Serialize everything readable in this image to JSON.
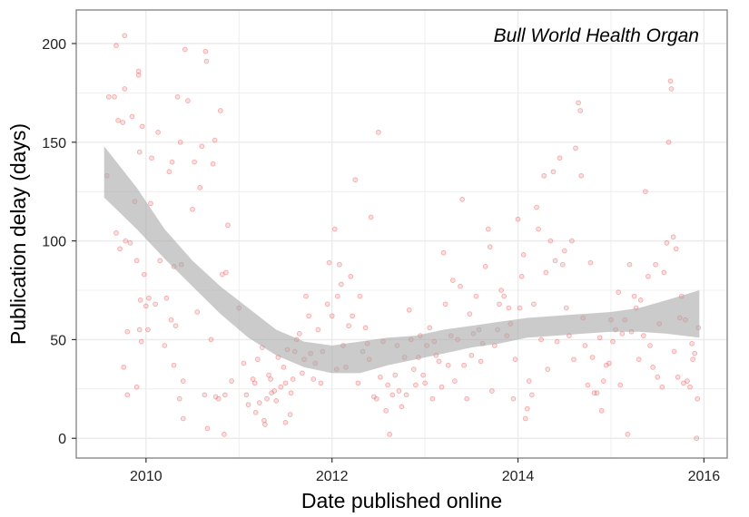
{
  "chart_data": {
    "type": "scatter",
    "annotation": "Bull World Health Organ",
    "xlabel": "Date published online",
    "ylabel": "Publication delay (days)",
    "xlim": [
      2009.25,
      2016.25
    ],
    "ylim": [
      -10,
      217
    ],
    "x_ticks": [
      2010,
      2012,
      2014,
      2016
    ],
    "y_ticks": [
      0,
      50,
      100,
      150,
      200
    ],
    "grid": true,
    "colors": {
      "points": "#f08080",
      "points_stroke": "#e03030",
      "band": "#a9a9a9",
      "grid": "#ebebeb",
      "frame": "#7f7f7f"
    },
    "smooth": {
      "x": [
        2009.55,
        2009.9,
        2010.2,
        2010.5,
        2010.8,
        2011.1,
        2011.4,
        2011.7,
        2012.0,
        2012.3,
        2012.6,
        2012.9,
        2013.2,
        2013.5,
        2013.8,
        2014.1,
        2014.4,
        2014.7,
        2015.0,
        2015.3,
        2015.6,
        2015.95
      ],
      "lower": [
        122,
        106,
        91,
        77,
        63,
        51,
        42,
        36,
        33,
        33,
        37,
        40,
        43,
        46,
        48,
        51,
        52,
        53,
        54,
        54,
        53,
        51
      ],
      "upper": [
        148,
        127,
        106,
        90,
        77,
        66,
        55,
        49,
        47,
        49,
        51,
        52,
        55,
        57,
        59,
        61,
        62,
        63,
        64,
        66,
        70,
        75
      ]
    },
    "points": [
      [
        2009.58,
        133
      ],
      [
        2009.6,
        173
      ],
      [
        2009.66,
        173
      ],
      [
        2009.68,
        104
      ],
      [
        2009.68,
        199
      ],
      [
        2009.7,
        161
      ],
      [
        2009.72,
        96
      ],
      [
        2009.75,
        160
      ],
      [
        2009.76,
        36
      ],
      [
        2009.77,
        177
      ],
      [
        2009.77,
        204
      ],
      [
        2009.78,
        100
      ],
      [
        2009.8,
        22
      ],
      [
        2009.8,
        54
      ],
      [
        2009.83,
        99
      ],
      [
        2009.85,
        163
      ],
      [
        2009.88,
        120
      ],
      [
        2009.9,
        26
      ],
      [
        2009.9,
        90
      ],
      [
        2009.92,
        184
      ],
      [
        2009.92,
        186
      ],
      [
        2009.93,
        55
      ],
      [
        2009.93,
        145
      ],
      [
        2009.94,
        70
      ],
      [
        2009.95,
        49
      ],
      [
        2009.96,
        158
      ],
      [
        2009.98,
        83
      ],
      [
        2010.0,
        67
      ],
      [
        2010.02,
        55
      ],
      [
        2010.03,
        71
      ],
      [
        2010.05,
        119
      ],
      [
        2010.06,
        142
      ],
      [
        2010.1,
        68
      ],
      [
        2010.13,
        155
      ],
      [
        2010.15,
        90
      ],
      [
        2010.2,
        47
      ],
      [
        2010.22,
        71
      ],
      [
        2010.25,
        135
      ],
      [
        2010.27,
        60
      ],
      [
        2010.28,
        140
      ],
      [
        2010.3,
        87
      ],
      [
        2010.3,
        37
      ],
      [
        2010.32,
        57
      ],
      [
        2010.34,
        173
      ],
      [
        2010.36,
        20
      ],
      [
        2010.37,
        150
      ],
      [
        2010.38,
        88
      ],
      [
        2010.4,
        10
      ],
      [
        2010.4,
        29
      ],
      [
        2010.42,
        197
      ],
      [
        2010.45,
        171
      ],
      [
        2010.5,
        116
      ],
      [
        2010.52,
        140
      ],
      [
        2010.55,
        64
      ],
      [
        2010.58,
        127
      ],
      [
        2010.6,
        148
      ],
      [
        2010.63,
        22
      ],
      [
        2010.64,
        196
      ],
      [
        2010.65,
        191
      ],
      [
        2010.66,
        5
      ],
      [
        2010.7,
        50
      ],
      [
        2010.72,
        139
      ],
      [
        2010.74,
        151
      ],
      [
        2010.75,
        21
      ],
      [
        2010.78,
        20
      ],
      [
        2010.8,
        166
      ],
      [
        2010.82,
        83
      ],
      [
        2010.84,
        2
      ],
      [
        2010.85,
        22
      ],
      [
        2010.86,
        84
      ],
      [
        2010.88,
        108
      ],
      [
        2010.92,
        29
      ],
      [
        2011.0,
        66
      ],
      [
        2011.05,
        38
      ],
      [
        2011.08,
        22
      ],
      [
        2011.1,
        17
      ],
      [
        2011.15,
        30
      ],
      [
        2011.17,
        28
      ],
      [
        2011.18,
        13
      ],
      [
        2011.2,
        40
      ],
      [
        2011.22,
        18
      ],
      [
        2011.25,
        46
      ],
      [
        2011.27,
        9
      ],
      [
        2011.28,
        7
      ],
      [
        2011.3,
        20
      ],
      [
        2011.32,
        32
      ],
      [
        2011.34,
        30
      ],
      [
        2011.35,
        23
      ],
      [
        2011.38,
        24
      ],
      [
        2011.4,
        19
      ],
      [
        2011.42,
        41
      ],
      [
        2011.45,
        26
      ],
      [
        2011.48,
        36
      ],
      [
        2011.5,
        8
      ],
      [
        2011.5,
        28
      ],
      [
        2011.52,
        45
      ],
      [
        2011.55,
        12
      ],
      [
        2011.56,
        23
      ],
      [
        2011.58,
        30
      ],
      [
        2011.6,
        44
      ],
      [
        2011.62,
        50
      ],
      [
        2011.65,
        53
      ],
      [
        2011.68,
        33
      ],
      [
        2011.7,
        40
      ],
      [
        2011.72,
        72
      ],
      [
        2011.75,
        62
      ],
      [
        2011.77,
        43
      ],
      [
        2011.8,
        30
      ],
      [
        2011.82,
        38
      ],
      [
        2011.85,
        55
      ],
      [
        2011.88,
        28
      ],
      [
        2011.9,
        44
      ],
      [
        2011.95,
        68
      ],
      [
        2011.97,
        89
      ],
      [
        2012.0,
        62
      ],
      [
        2012.03,
        106
      ],
      [
        2012.05,
        35
      ],
      [
        2012.06,
        72
      ],
      [
        2012.08,
        88
      ],
      [
        2012.1,
        78
      ],
      [
        2012.12,
        47
      ],
      [
        2012.15,
        36
      ],
      [
        2012.18,
        57
      ],
      [
        2012.2,
        82
      ],
      [
        2012.22,
        62
      ],
      [
        2012.25,
        131
      ],
      [
        2012.28,
        28
      ],
      [
        2012.3,
        72
      ],
      [
        2012.33,
        44
      ],
      [
        2012.36,
        56
      ],
      [
        2012.38,
        48
      ],
      [
        2012.4,
        40
      ],
      [
        2012.42,
        112
      ],
      [
        2012.45,
        21
      ],
      [
        2012.48,
        20
      ],
      [
        2012.5,
        155
      ],
      [
        2012.52,
        31
      ],
      [
        2012.55,
        49
      ],
      [
        2012.58,
        14
      ],
      [
        2012.6,
        27
      ],
      [
        2012.62,
        2
      ],
      [
        2012.65,
        22
      ],
      [
        2012.68,
        32
      ],
      [
        2012.7,
        47
      ],
      [
        2012.72,
        24
      ],
      [
        2012.75,
        16
      ],
      [
        2012.78,
        41
      ],
      [
        2012.8,
        22
      ],
      [
        2012.83,
        65
      ],
      [
        2012.85,
        50
      ],
      [
        2012.88,
        35
      ],
      [
        2012.9,
        27
      ],
      [
        2012.93,
        41
      ],
      [
        2012.95,
        52
      ],
      [
        2012.98,
        32
      ],
      [
        2013.0,
        28
      ],
      [
        2013.02,
        47
      ],
      [
        2013.05,
        56
      ],
      [
        2013.08,
        20
      ],
      [
        2013.1,
        49
      ],
      [
        2013.12,
        42
      ],
      [
        2013.15,
        39
      ],
      [
        2013.18,
        26
      ],
      [
        2013.2,
        94
      ],
      [
        2013.22,
        68
      ],
      [
        2013.25,
        37
      ],
      [
        2013.28,
        52
      ],
      [
        2013.3,
        80
      ],
      [
        2013.32,
        29
      ],
      [
        2013.35,
        50
      ],
      [
        2013.38,
        77
      ],
      [
        2013.4,
        121
      ],
      [
        2013.42,
        37
      ],
      [
        2013.45,
        20
      ],
      [
        2013.48,
        63
      ],
      [
        2013.5,
        42
      ],
      [
        2013.52,
        53
      ],
      [
        2013.55,
        72
      ],
      [
        2013.58,
        55
      ],
      [
        2013.6,
        39
      ],
      [
        2013.62,
        48
      ],
      [
        2013.65,
        87
      ],
      [
        2013.68,
        106
      ],
      [
        2013.7,
        97
      ],
      [
        2013.72,
        24
      ],
      [
        2013.75,
        47
      ],
      [
        2013.78,
        55
      ],
      [
        2013.8,
        68
      ],
      [
        2013.82,
        75
      ],
      [
        2013.85,
        72
      ],
      [
        2013.88,
        52
      ],
      [
        2013.9,
        66
      ],
      [
        2013.92,
        58
      ],
      [
        2013.95,
        20
      ],
      [
        2013.97,
        40
      ],
      [
        2014.0,
        111
      ],
      [
        2014.02,
        66
      ],
      [
        2014.04,
        82
      ],
      [
        2014.06,
        93
      ],
      [
        2014.08,
        10
      ],
      [
        2014.1,
        15
      ],
      [
        2014.12,
        29
      ],
      [
        2014.15,
        22
      ],
      [
        2014.17,
        68
      ],
      [
        2014.2,
        117
      ],
      [
        2014.22,
        106
      ],
      [
        2014.25,
        50
      ],
      [
        2014.28,
        133
      ],
      [
        2014.3,
        84
      ],
      [
        2014.32,
        35
      ],
      [
        2014.35,
        100
      ],
      [
        2014.38,
        135
      ],
      [
        2014.4,
        90
      ],
      [
        2014.42,
        49
      ],
      [
        2014.45,
        142
      ],
      [
        2014.48,
        88
      ],
      [
        2014.5,
        95
      ],
      [
        2014.52,
        66
      ],
      [
        2014.55,
        52
      ],
      [
        2014.58,
        100
      ],
      [
        2014.6,
        40
      ],
      [
        2014.62,
        147
      ],
      [
        2014.65,
        170
      ],
      [
        2014.67,
        166
      ],
      [
        2014.68,
        133
      ],
      [
        2014.7,
        61
      ],
      [
        2014.72,
        47
      ],
      [
        2014.75,
        27
      ],
      [
        2014.78,
        89
      ],
      [
        2014.8,
        41
      ],
      [
        2014.82,
        23
      ],
      [
        2014.85,
        23
      ],
      [
        2014.88,
        51
      ],
      [
        2014.9,
        14
      ],
      [
        2014.92,
        29
      ],
      [
        2014.95,
        37
      ],
      [
        2014.98,
        38
      ],
      [
        2015.0,
        60
      ],
      [
        2015.02,
        49
      ],
      [
        2015.05,
        55
      ],
      [
        2015.08,
        74
      ],
      [
        2015.1,
        27
      ],
      [
        2015.12,
        53
      ],
      [
        2015.15,
        60
      ],
      [
        2015.18,
        2
      ],
      [
        2015.2,
        88
      ],
      [
        2015.22,
        54
      ],
      [
        2015.25,
        72
      ],
      [
        2015.27,
        66
      ],
      [
        2015.3,
        40
      ],
      [
        2015.32,
        70
      ],
      [
        2015.35,
        52
      ],
      [
        2015.37,
        125
      ],
      [
        2015.4,
        82
      ],
      [
        2015.42,
        47
      ],
      [
        2015.45,
        36
      ],
      [
        2015.48,
        88
      ],
      [
        2015.5,
        31
      ],
      [
        2015.52,
        58
      ],
      [
        2015.55,
        26
      ],
      [
        2015.57,
        84
      ],
      [
        2015.6,
        99
      ],
      [
        2015.62,
        150
      ],
      [
        2015.64,
        181
      ],
      [
        2015.65,
        177
      ],
      [
        2015.67,
        102
      ],
      [
        2015.68,
        44
      ],
      [
        2015.7,
        96
      ],
      [
        2015.72,
        31
      ],
      [
        2015.74,
        61
      ],
      [
        2015.76,
        72
      ],
      [
        2015.78,
        28
      ],
      [
        2015.8,
        60
      ],
      [
        2015.82,
        29
      ],
      [
        2015.85,
        26
      ],
      [
        2015.87,
        48
      ],
      [
        2015.88,
        40
      ],
      [
        2015.9,
        43
      ],
      [
        2015.92,
        0
      ],
      [
        2015.93,
        20
      ],
      [
        2015.94,
        56
      ]
    ]
  }
}
